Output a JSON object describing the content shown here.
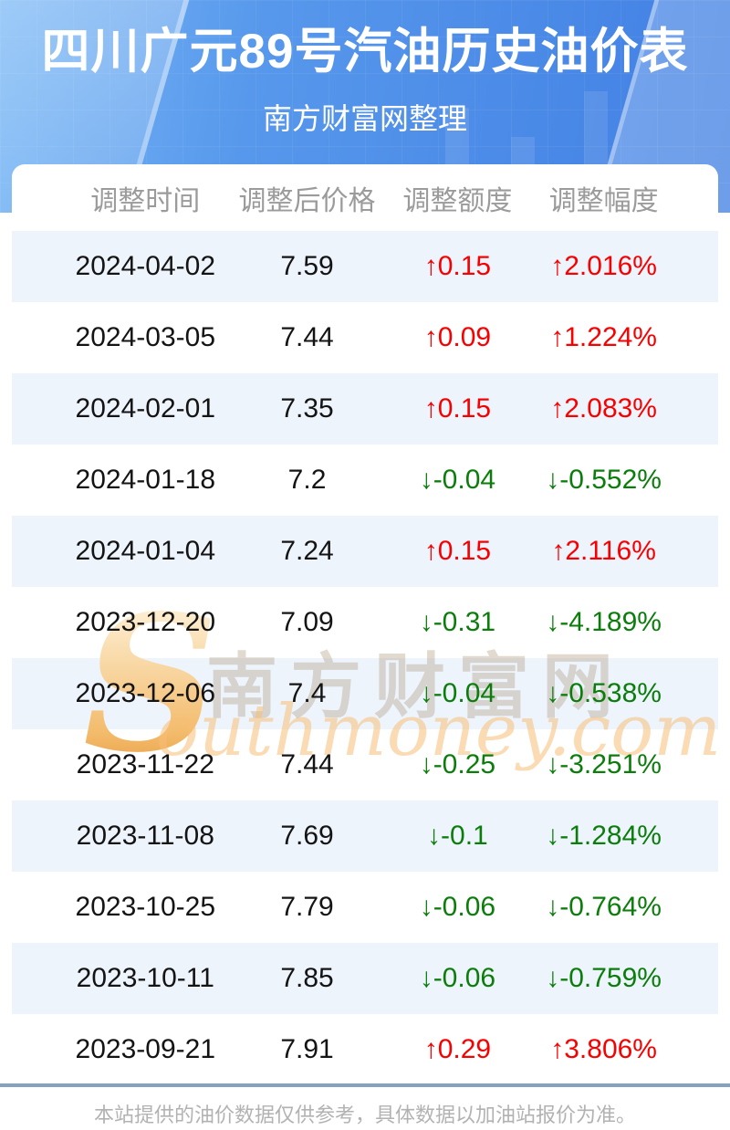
{
  "header": {
    "title": "四川广元89号汽油历史油价表",
    "subtitle": "南方财富网整理"
  },
  "table": {
    "columns": [
      "调整时间",
      "调整后价格",
      "调整额度",
      "调整幅度"
    ],
    "arrows": {
      "up": "↑",
      "down": "↓"
    },
    "rows": [
      {
        "date": "2024-04-02",
        "price": "7.59",
        "change": "0.15",
        "percent": "2.016%",
        "direction": "up"
      },
      {
        "date": "2024-03-05",
        "price": "7.44",
        "change": "0.09",
        "percent": "1.224%",
        "direction": "up"
      },
      {
        "date": "2024-02-01",
        "price": "7.35",
        "change": "0.15",
        "percent": "2.083%",
        "direction": "up"
      },
      {
        "date": "2024-01-18",
        "price": "7.2",
        "change": "-0.04",
        "percent": "-0.552%",
        "direction": "down"
      },
      {
        "date": "2024-01-04",
        "price": "7.24",
        "change": "0.15",
        "percent": "2.116%",
        "direction": "up"
      },
      {
        "date": "2023-12-20",
        "price": "7.09",
        "change": "-0.31",
        "percent": "-4.189%",
        "direction": "down"
      },
      {
        "date": "2023-12-06",
        "price": "7.4",
        "change": "-0.04",
        "percent": "-0.538%",
        "direction": "down"
      },
      {
        "date": "2023-11-22",
        "price": "7.44",
        "change": "-0.25",
        "percent": "-3.251%",
        "direction": "down"
      },
      {
        "date": "2023-11-08",
        "price": "7.69",
        "change": "-0.1",
        "percent": "-1.284%",
        "direction": "down"
      },
      {
        "date": "2023-10-25",
        "price": "7.79",
        "change": "-0.06",
        "percent": "-0.764%",
        "direction": "down"
      },
      {
        "date": "2023-10-11",
        "price": "7.85",
        "change": "-0.06",
        "percent": "-0.759%",
        "direction": "down"
      },
      {
        "date": "2023-09-21",
        "price": "7.91",
        "change": "0.29",
        "percent": "3.806%",
        "direction": "up"
      }
    ]
  },
  "watermark": {
    "initial": "S",
    "cn": "南方财富网",
    "en": "outhmoney.com"
  },
  "footer": {
    "note": "本站提供的油价数据仅供参考，具体数据以加油站报价为准。"
  },
  "colors": {
    "up": "#f90000",
    "down": "#0b7d0b",
    "stripe": "#eef4fc",
    "accent_blue": "#4a90e8"
  }
}
